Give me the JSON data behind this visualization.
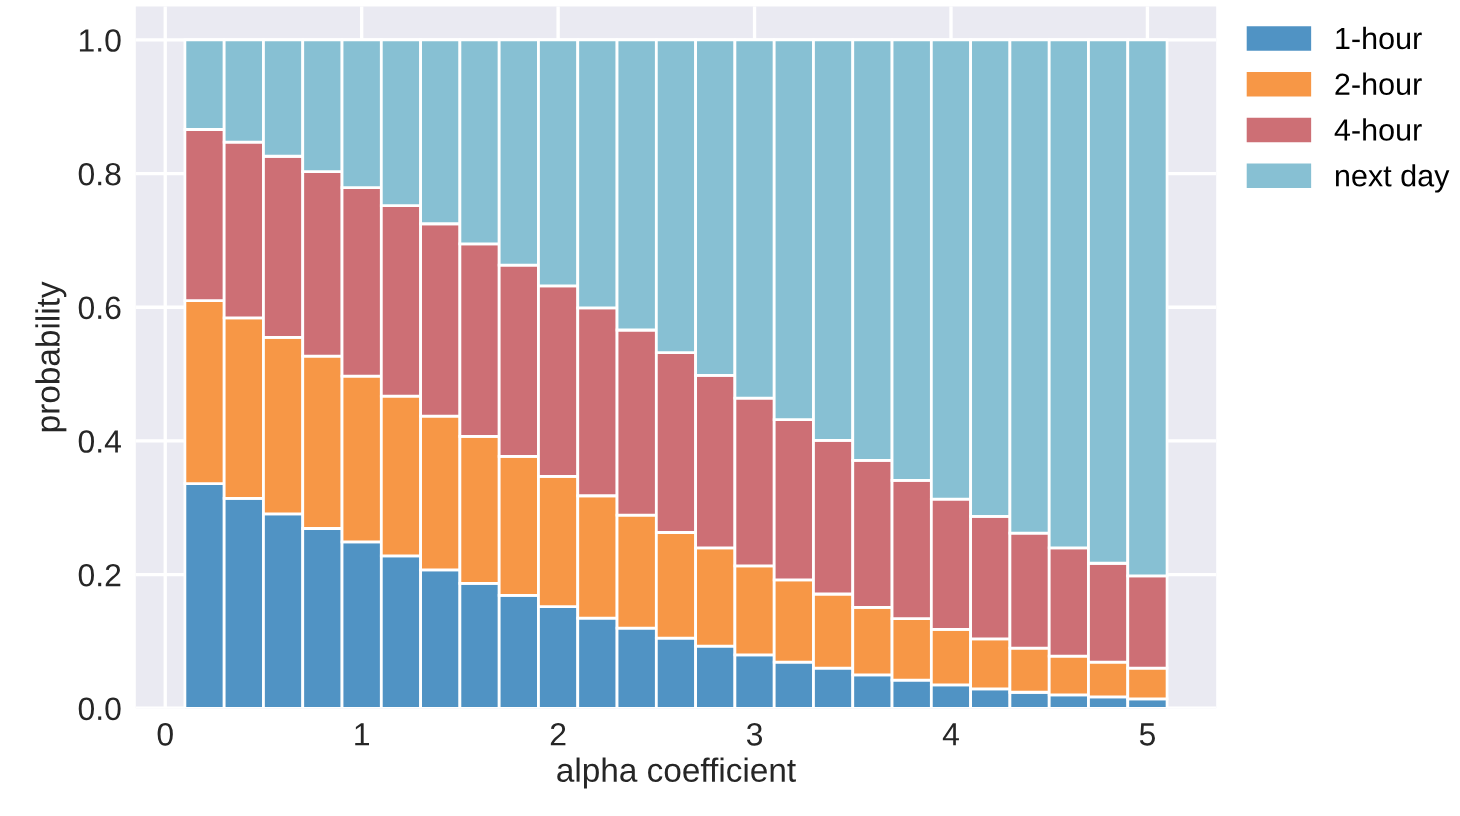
{
  "chart_data": {
    "type": "bar",
    "stacked": true,
    "xlabel": "alpha coefficient",
    "ylabel": "probability",
    "x": [
      0.2,
      0.4,
      0.6,
      0.8,
      1.0,
      1.2,
      1.4,
      1.6,
      1.8,
      2.0,
      2.2,
      2.4,
      2.6,
      2.8,
      3.0,
      3.2,
      3.4,
      3.6,
      3.8,
      4.0,
      4.2,
      4.4,
      4.6,
      4.8,
      5.0
    ],
    "series": [
      {
        "name": "1-hour",
        "color": "#5093c4",
        "values": [
          0.336,
          0.314,
          0.291,
          0.269,
          0.249,
          0.228,
          0.207,
          0.187,
          0.169,
          0.152,
          0.135,
          0.12,
          0.105,
          0.093,
          0.08,
          0.069,
          0.06,
          0.05,
          0.042,
          0.035,
          0.029,
          0.024,
          0.02,
          0.017,
          0.014
        ]
      },
      {
        "name": "2-hour",
        "color": "#f79746",
        "values": [
          0.274,
          0.27,
          0.264,
          0.258,
          0.248,
          0.239,
          0.23,
          0.22,
          0.208,
          0.195,
          0.183,
          0.169,
          0.158,
          0.147,
          0.133,
          0.123,
          0.111,
          0.101,
          0.092,
          0.083,
          0.075,
          0.066,
          0.058,
          0.052,
          0.046
        ]
      },
      {
        "name": "4-hour",
        "color": "#cd6f75",
        "values": [
          0.256,
          0.263,
          0.271,
          0.276,
          0.282,
          0.285,
          0.288,
          0.288,
          0.286,
          0.285,
          0.281,
          0.277,
          0.269,
          0.258,
          0.251,
          0.24,
          0.23,
          0.22,
          0.207,
          0.195,
          0.183,
          0.172,
          0.162,
          0.148,
          0.138
        ]
      },
      {
        "name": "next day",
        "color": "#87c0d3",
        "values": [
          0.134,
          0.153,
          0.174,
          0.197,
          0.221,
          0.248,
          0.275,
          0.305,
          0.337,
          0.368,
          0.401,
          0.434,
          0.468,
          0.502,
          0.536,
          0.568,
          0.599,
          0.629,
          0.659,
          0.687,
          0.713,
          0.738,
          0.76,
          0.783,
          0.802
        ]
      }
    ],
    "xlim": [
      -0.15,
      5.35
    ],
    "xticks": [
      0,
      1,
      2,
      3,
      4,
      5
    ],
    "ylim": [
      0,
      1.05
    ],
    "yticks": [
      {
        "value": 0,
        "label": "0.0"
      },
      {
        "value": 0.2,
        "label": "0.2"
      },
      {
        "value": 0.4,
        "label": "0.4"
      },
      {
        "value": 0.6,
        "label": "0.6"
      },
      {
        "value": 0.8,
        "label": "0.8"
      },
      {
        "value": 1,
        "label": "1.0"
      }
    ],
    "grid": true,
    "legend": "top right"
  }
}
